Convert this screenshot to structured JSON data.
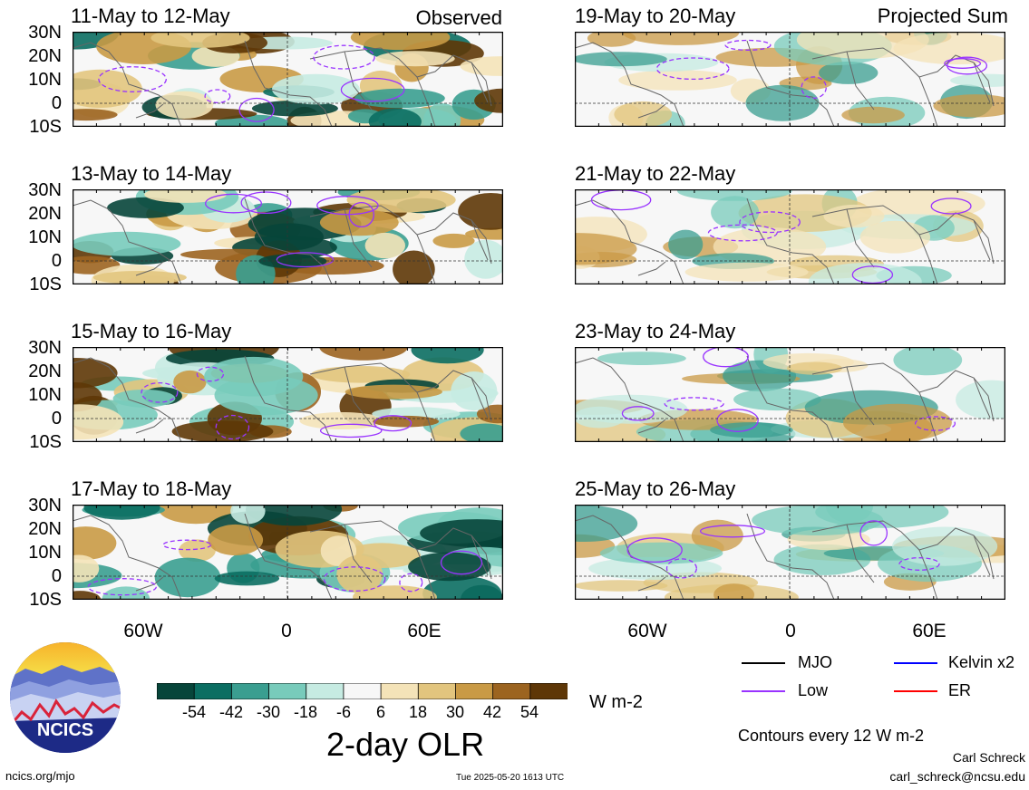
{
  "panel_tags": {
    "observed": "Observed",
    "projected": "Projected Sum"
  },
  "panels": [
    {
      "title": "11-May to 12-May"
    },
    {
      "title": "13-May to 14-May"
    },
    {
      "title": "15-May to 16-May"
    },
    {
      "title": "17-May to 18-May"
    },
    {
      "title": "19-May to 20-May"
    },
    {
      "title": "21-May to 22-May"
    },
    {
      "title": "23-May to 24-May"
    },
    {
      "title": "25-May to 26-May"
    }
  ],
  "lat_labels": [
    "30N",
    "20N",
    "10N",
    "0",
    "10S"
  ],
  "lon_labels": [
    "60W",
    "0",
    "60E"
  ],
  "colorbar": {
    "ticks": [
      "-54",
      "-42",
      "-30",
      "-18",
      "-6",
      "6",
      "18",
      "30",
      "42",
      "54"
    ],
    "colors": [
      "#07453a",
      "#0b6e62",
      "#3a9e90",
      "#78cbbb",
      "#c6ebe2",
      "#f7f7f7",
      "#f4e3b8",
      "#e2c57e",
      "#c99a45",
      "#9c6420",
      "#5e3707"
    ],
    "units": "W m-2",
    "title": "2-day OLR"
  },
  "legend": {
    "items": [
      {
        "label": "MJO",
        "color": "#000000"
      },
      {
        "label": "Kelvin x2",
        "color": "#0000ff"
      },
      {
        "label": "Low",
        "color": "#9933ff"
      },
      {
        "label": "ER",
        "color": "#ff0000"
      }
    ],
    "contour_note": "Contours every 12 W m-2"
  },
  "logo": {
    "text": "NCICS"
  },
  "footer": {
    "url": "ncics.org/mjo",
    "timestamp": "Tue 2025-05-20 1613 UTC",
    "author": "Carl Schreck",
    "email": "carl_schreck@ncsu.edu"
  }
}
